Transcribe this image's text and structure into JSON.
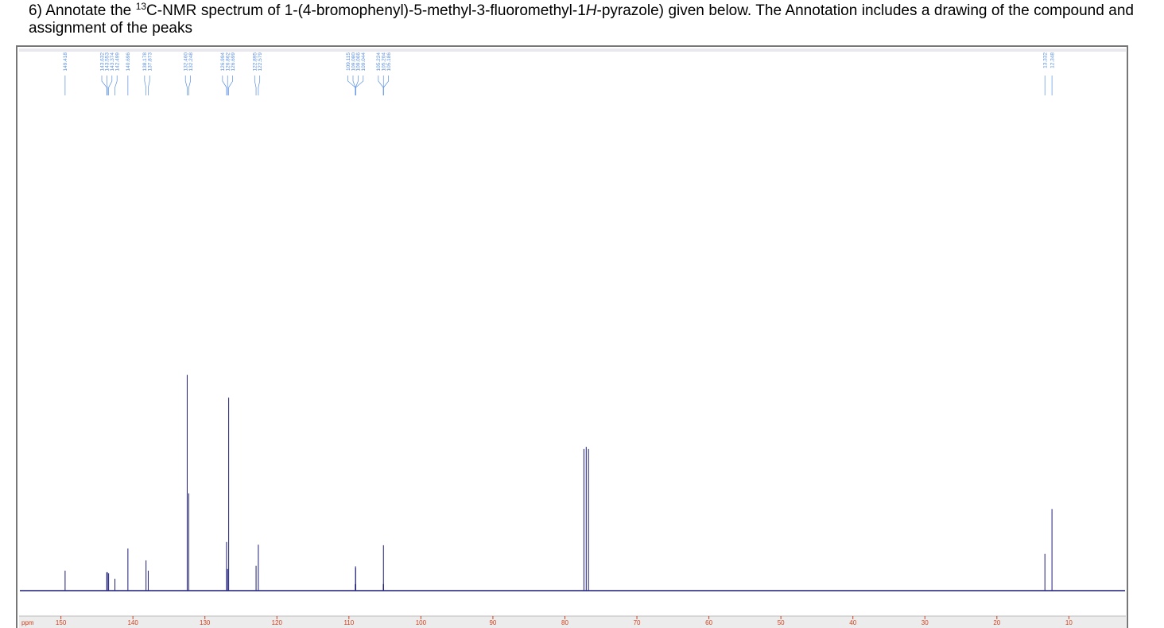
{
  "question": {
    "lead": "6) Annotate the ",
    "isotope": "13",
    "middle": "C-NMR spectrum of 1-(4-bromophenyl)-5-methyl-3-fluoromethyl-1",
    "italic": "H",
    "tail": "-pyrazole) given below. The Annotation includes a drawing of the compound and assignment of the peaks"
  },
  "chart_data": {
    "type": "spectrum",
    "x_unit": "ppm",
    "color": "#1c1c78",
    "label_color": "#5b8fe0",
    "axis_color": "#d0421f",
    "xlim": [
      155.7,
      2.2
    ],
    "ylim": [
      0,
      100
    ],
    "xticks": [
      150,
      140,
      130,
      120,
      110,
      100,
      90,
      80,
      70,
      60,
      50,
      40,
      30,
      20,
      10
    ],
    "peaks": [
      {
        "ppm": 149.418,
        "height": 3.7
      },
      {
        "ppm": 143.632,
        "height": 3.4
      },
      {
        "ppm": 143.553,
        "height": 3.4
      },
      {
        "ppm": 143.374,
        "height": 3.2
      },
      {
        "ppm": 142.499,
        "height": 2.2
      },
      {
        "ppm": 140.696,
        "height": 7.8
      },
      {
        "ppm": 138.178,
        "height": 5.6
      },
      {
        "ppm": 137.873,
        "height": 3.7
      },
      {
        "ppm": 132.46,
        "label": "132.460",
        "height": 39.9
      },
      {
        "ppm": 132.248,
        "height": 18
      },
      {
        "ppm": 126.994,
        "height": 9
      },
      {
        "ppm": 126.862,
        "height": 4
      },
      {
        "ppm": 126.699,
        "height": 35.7
      },
      {
        "ppm": 122.895,
        "height": 4.6
      },
      {
        "ppm": 122.579,
        "height": 8.5
      },
      {
        "ppm": 109.115,
        "height": 1.2
      },
      {
        "ppm": 109.08,
        "label": "109.080",
        "height": 4.5
      },
      {
        "ppm": 109.066,
        "height": 4.2
      },
      {
        "ppm": 109.044,
        "height": 1.2
      },
      {
        "ppm": 105.224,
        "height": 1.2
      },
      {
        "ppm": 105.204,
        "height": 8.4
      },
      {
        "ppm": 105.186,
        "height": 1.2
      },
      {
        "ppm": 13.332,
        "height": 6.8
      },
      {
        "ppm": 12.348,
        "height": 15.1
      }
    ],
    "solvent_peaks": [
      {
        "ppm": 77.36,
        "height": 26.2
      },
      {
        "ppm": 77.04,
        "height": 26.6
      },
      {
        "ppm": 76.72,
        "height": 26.2
      }
    ]
  }
}
